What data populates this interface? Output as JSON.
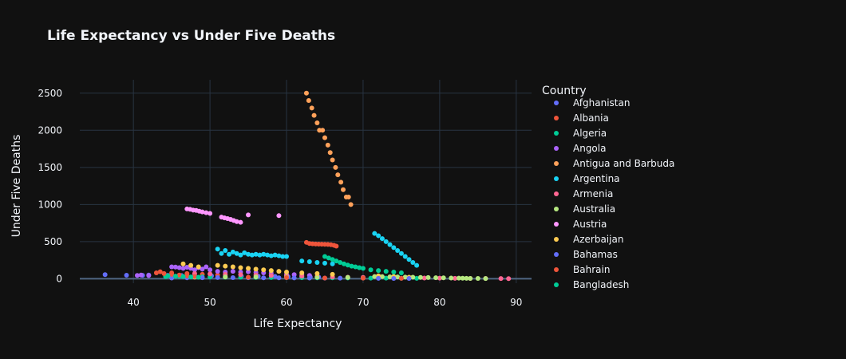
{
  "chart_data": {
    "type": "scatter",
    "title": "Life Expectancy vs Under Five Deaths",
    "xlabel": "Life Expectancy",
    "ylabel": "Under Five Deaths",
    "xlim": [
      33,
      92
    ],
    "ylim": [
      -60,
      2680
    ],
    "xticks": [
      40,
      50,
      60,
      70,
      80,
      90
    ],
    "yticks": [
      0,
      500,
      1000,
      1500,
      2000,
      2500
    ],
    "grid": true,
    "legend": {
      "title": "Country",
      "placement": "right"
    },
    "series": [
      {
        "name": "Afghanistan",
        "color": "#636efa",
        "x": [
          36.3,
          39.1,
          41.2,
          42.0,
          44.5,
          46.3,
          48.0,
          50.2,
          52.0,
          54.1,
          56.3,
          58.5,
          60.2,
          62.0,
          63.1,
          64.2
        ],
        "y": [
          55,
          48,
          46,
          50,
          46,
          44,
          42,
          40,
          38,
          36,
          34,
          32,
          28,
          26,
          24,
          22
        ]
      },
      {
        "name": "Albania",
        "color": "#EF553B",
        "x": [
          62.6,
          63.0,
          63.4,
          63.8,
          64.2,
          64.6,
          65.0,
          65.4,
          65.8,
          66.2,
          66.5,
          43.5,
          45.0,
          47.0,
          49.0,
          51.0
        ],
        "y": [
          490,
          475,
          470,
          468,
          466,
          465,
          464,
          462,
          458,
          450,
          440,
          95,
          80,
          70,
          60,
          50
        ]
      },
      {
        "name": "Algeria",
        "color": "#00cc96",
        "x": [
          44.2,
          45.0,
          46.0,
          47.0,
          48.0,
          49.0,
          50.0,
          52.0,
          54.0,
          56.0,
          58.0,
          60.0,
          62.0,
          64.0,
          66.0,
          68.0,
          70.0,
          71.0,
          72.0,
          73.0,
          74.0,
          75.0,
          76.0,
          77.0
        ],
        "y": [
          30,
          35,
          32,
          30,
          28,
          26,
          24,
          22,
          20,
          18,
          16,
          15,
          14,
          13,
          12,
          11,
          10,
          9,
          9,
          8,
          8,
          7,
          7,
          6
        ]
      },
      {
        "name": "Angola",
        "color": "#ab63fa",
        "x": [
          40.5,
          41.0,
          42.0,
          45.0,
          45.5,
          46.0,
          46.5,
          47.0,
          47.5,
          48.0,
          48.5,
          49.0,
          49.5,
          50.0,
          51.0,
          52.0,
          53.0,
          54.0,
          55.0,
          56.0,
          57.0,
          58.0,
          60.0,
          61.0,
          62.0,
          63.0
        ],
        "y": [
          45,
          50,
          44,
          160,
          158,
          150,
          140,
          155,
          140,
          120,
          150,
          130,
          160,
          120,
          100,
          90,
          100,
          90,
          95,
          85,
          80,
          75,
          60,
          55,
          50,
          45
        ]
      },
      {
        "name": "Antigua and Barbuda",
        "color": "#FFA15A",
        "x": [
          62.6,
          62.9,
          63.3,
          63.6,
          64.0,
          64.3,
          64.7,
          65.0,
          65.4,
          65.7,
          66.0,
          66.4,
          66.7,
          67.1,
          67.4,
          67.8,
          68.1,
          68.4
        ],
        "y": [
          2500,
          2400,
          2300,
          2200,
          2100,
          2000,
          2000,
          1900,
          1800,
          1700,
          1600,
          1500,
          1400,
          1300,
          1200,
          1100,
          1100,
          1000
        ]
      },
      {
        "name": "Argentina",
        "color": "#19d3f3",
        "x": [
          51.0,
          51.5,
          52.0,
          52.5,
          53.0,
          53.5,
          54.0,
          54.5,
          55.0,
          55.5,
          56.0,
          56.5,
          57.0,
          57.5,
          58.0,
          58.5,
          59.0,
          59.5,
          60.0,
          62.0,
          63.0,
          64.0,
          65.0,
          66.0,
          71.5,
          72.0,
          72.5,
          73.0,
          73.5,
          74.0,
          74.5,
          75.0,
          75.5,
          76.0,
          76.5,
          77.0
        ],
        "y": [
          400,
          340,
          380,
          330,
          360,
          340,
          320,
          350,
          330,
          320,
          330,
          320,
          330,
          320,
          310,
          320,
          310,
          300,
          300,
          240,
          230,
          220,
          210,
          200,
          610,
          580,
          540,
          500,
          460,
          420,
          380,
          340,
          300,
          260,
          220,
          180
        ]
      },
      {
        "name": "Armenia",
        "color": "#FF6692",
        "x": [
          48.0,
          50.0,
          52.0,
          54.0,
          56.0,
          58.0,
          60.0,
          62.0,
          64.0,
          66.0,
          68.0,
          70.0,
          72.0,
          74.0,
          76.0,
          78.0,
          80.0,
          82.0,
          84.0,
          86.0,
          88.0,
          89.0
        ],
        "y": [
          70,
          65,
          60,
          55,
          50,
          45,
          40,
          35,
          30,
          25,
          20,
          18,
          16,
          14,
          12,
          10,
          8,
          6,
          5,
          4,
          3,
          2
        ]
      },
      {
        "name": "Australia",
        "color": "#B6E880",
        "x": [
          45.0,
          48.0,
          52.0,
          56.0,
          60.0,
          64.0,
          68.0,
          71.5,
          72.5,
          73.5,
          74.5,
          75.5,
          76.5,
          77.5,
          78.5,
          79.5,
          80.5,
          81.5,
          82.5,
          83.0,
          83.5,
          84.0,
          85.0,
          86.0
        ],
        "y": [
          20,
          22,
          25,
          24,
          22,
          20,
          18,
          30,
          28,
          26,
          24,
          22,
          20,
          18,
          16,
          14,
          12,
          10,
          8,
          7,
          6,
          5,
          4,
          3
        ]
      },
      {
        "name": "Austria",
        "color": "#FF97FF",
        "x": [
          47.0,
          47.4,
          47.8,
          48.2,
          48.6,
          49.0,
          49.5,
          50.0,
          51.5,
          51.9,
          52.3,
          52.7,
          53.1,
          53.5,
          54.0,
          55.0,
          59.0
        ],
        "y": [
          940,
          935,
          925,
          920,
          910,
          900,
          890,
          880,
          830,
          820,
          810,
          800,
          785,
          770,
          760,
          860,
          850
        ]
      },
      {
        "name": "Azerbaijan",
        "color": "#FECB52",
        "x": [
          46.5,
          47.5,
          48.5,
          51.0,
          52.0,
          53.0,
          54.0,
          55.0,
          56.0,
          57.0,
          58.0,
          59.0,
          60.0,
          62.0,
          64.0,
          66.0,
          72.0,
          74.0,
          76.0
        ],
        "y": [
          200,
          180,
          160,
          180,
          170,
          160,
          150,
          140,
          130,
          120,
          110,
          100,
          90,
          80,
          70,
          60,
          40,
          30,
          20
        ]
      },
      {
        "name": "Bahamas",
        "color": "#636efa",
        "x": [
          45.0,
          47.0,
          49.0,
          51.0,
          53.0,
          55.0,
          57.0,
          59.0,
          61.0,
          63.0,
          65.0,
          67.0,
          72.0,
          74.0,
          76.0
        ],
        "y": [
          10,
          12,
          14,
          16,
          15,
          14,
          13,
          12,
          11,
          10,
          9,
          8,
          6,
          5,
          4
        ]
      },
      {
        "name": "Bahrain",
        "color": "#EF553B",
        "x": [
          43.0,
          44.0,
          45.0,
          46.0,
          47.0,
          48.0,
          55.0,
          60.0,
          65.0,
          70.0,
          75.0
        ],
        "y": [
          80,
          70,
          60,
          50,
          40,
          30,
          20,
          15,
          10,
          8,
          6
        ]
      },
      {
        "name": "Bangladesh",
        "color": "#00cc96",
        "x": [
          44.5,
          45.5,
          46.5,
          47.5,
          48.5,
          65.0,
          65.5,
          66.0,
          66.5,
          67.0,
          67.5,
          68.0,
          68.5,
          69.0,
          69.5,
          70.0,
          71.0,
          72.0,
          73.0,
          74.0,
          75.0
        ],
        "y": [
          40,
          35,
          30,
          25,
          20,
          300,
          280,
          260,
          240,
          220,
          200,
          185,
          170,
          160,
          150,
          140,
          120,
          110,
          100,
          90,
          80
        ]
      }
    ]
  }
}
